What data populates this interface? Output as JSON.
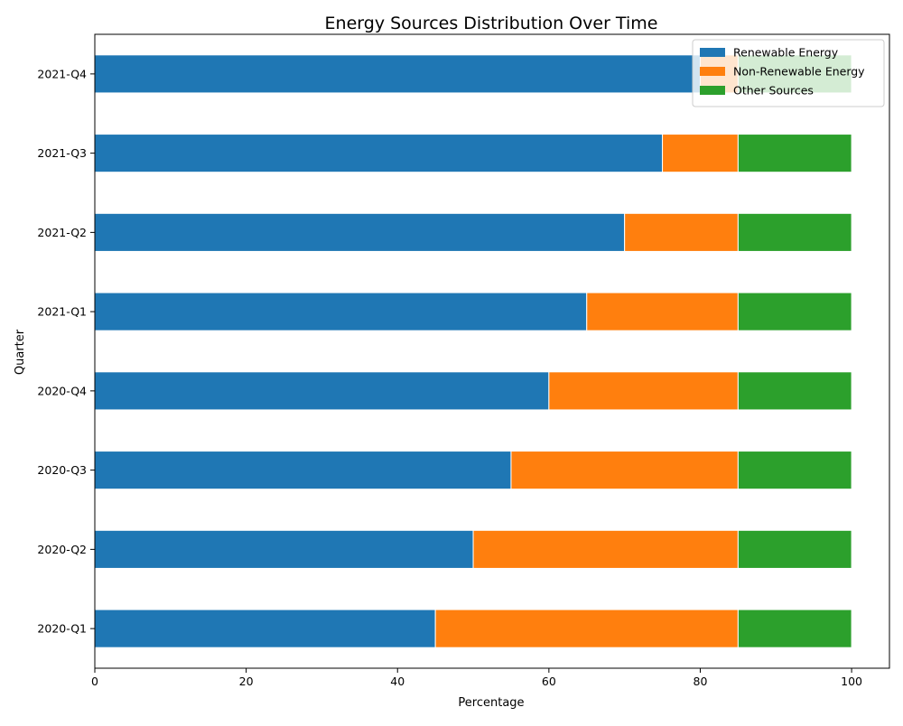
{
  "chart_data": {
    "type": "bar",
    "orientation": "horizontal",
    "stacked": true,
    "title": "Energy Sources Distribution Over Time",
    "xlabel": "Percentage",
    "ylabel": "Quarter",
    "xlim": [
      0,
      105
    ],
    "xticks": [
      0,
      20,
      40,
      60,
      80,
      100
    ],
    "categories": [
      "2020-Q1",
      "2020-Q2",
      "2020-Q3",
      "2020-Q4",
      "2021-Q1",
      "2021-Q2",
      "2021-Q3",
      "2021-Q4"
    ],
    "series": [
      {
        "name": "Renewable Energy",
        "color": "#1f77b4",
        "values": [
          45,
          50,
          55,
          60,
          65,
          70,
          75,
          80
        ]
      },
      {
        "name": "Non-Renewable Energy",
        "color": "#ff7f0e",
        "values": [
          40,
          35,
          30,
          25,
          20,
          15,
          10,
          5
        ]
      },
      {
        "name": "Other Sources",
        "color": "#2ca02c",
        "values": [
          15,
          15,
          15,
          15,
          15,
          15,
          15,
          15
        ]
      }
    ],
    "grid": false,
    "legend_position": "top-right"
  }
}
